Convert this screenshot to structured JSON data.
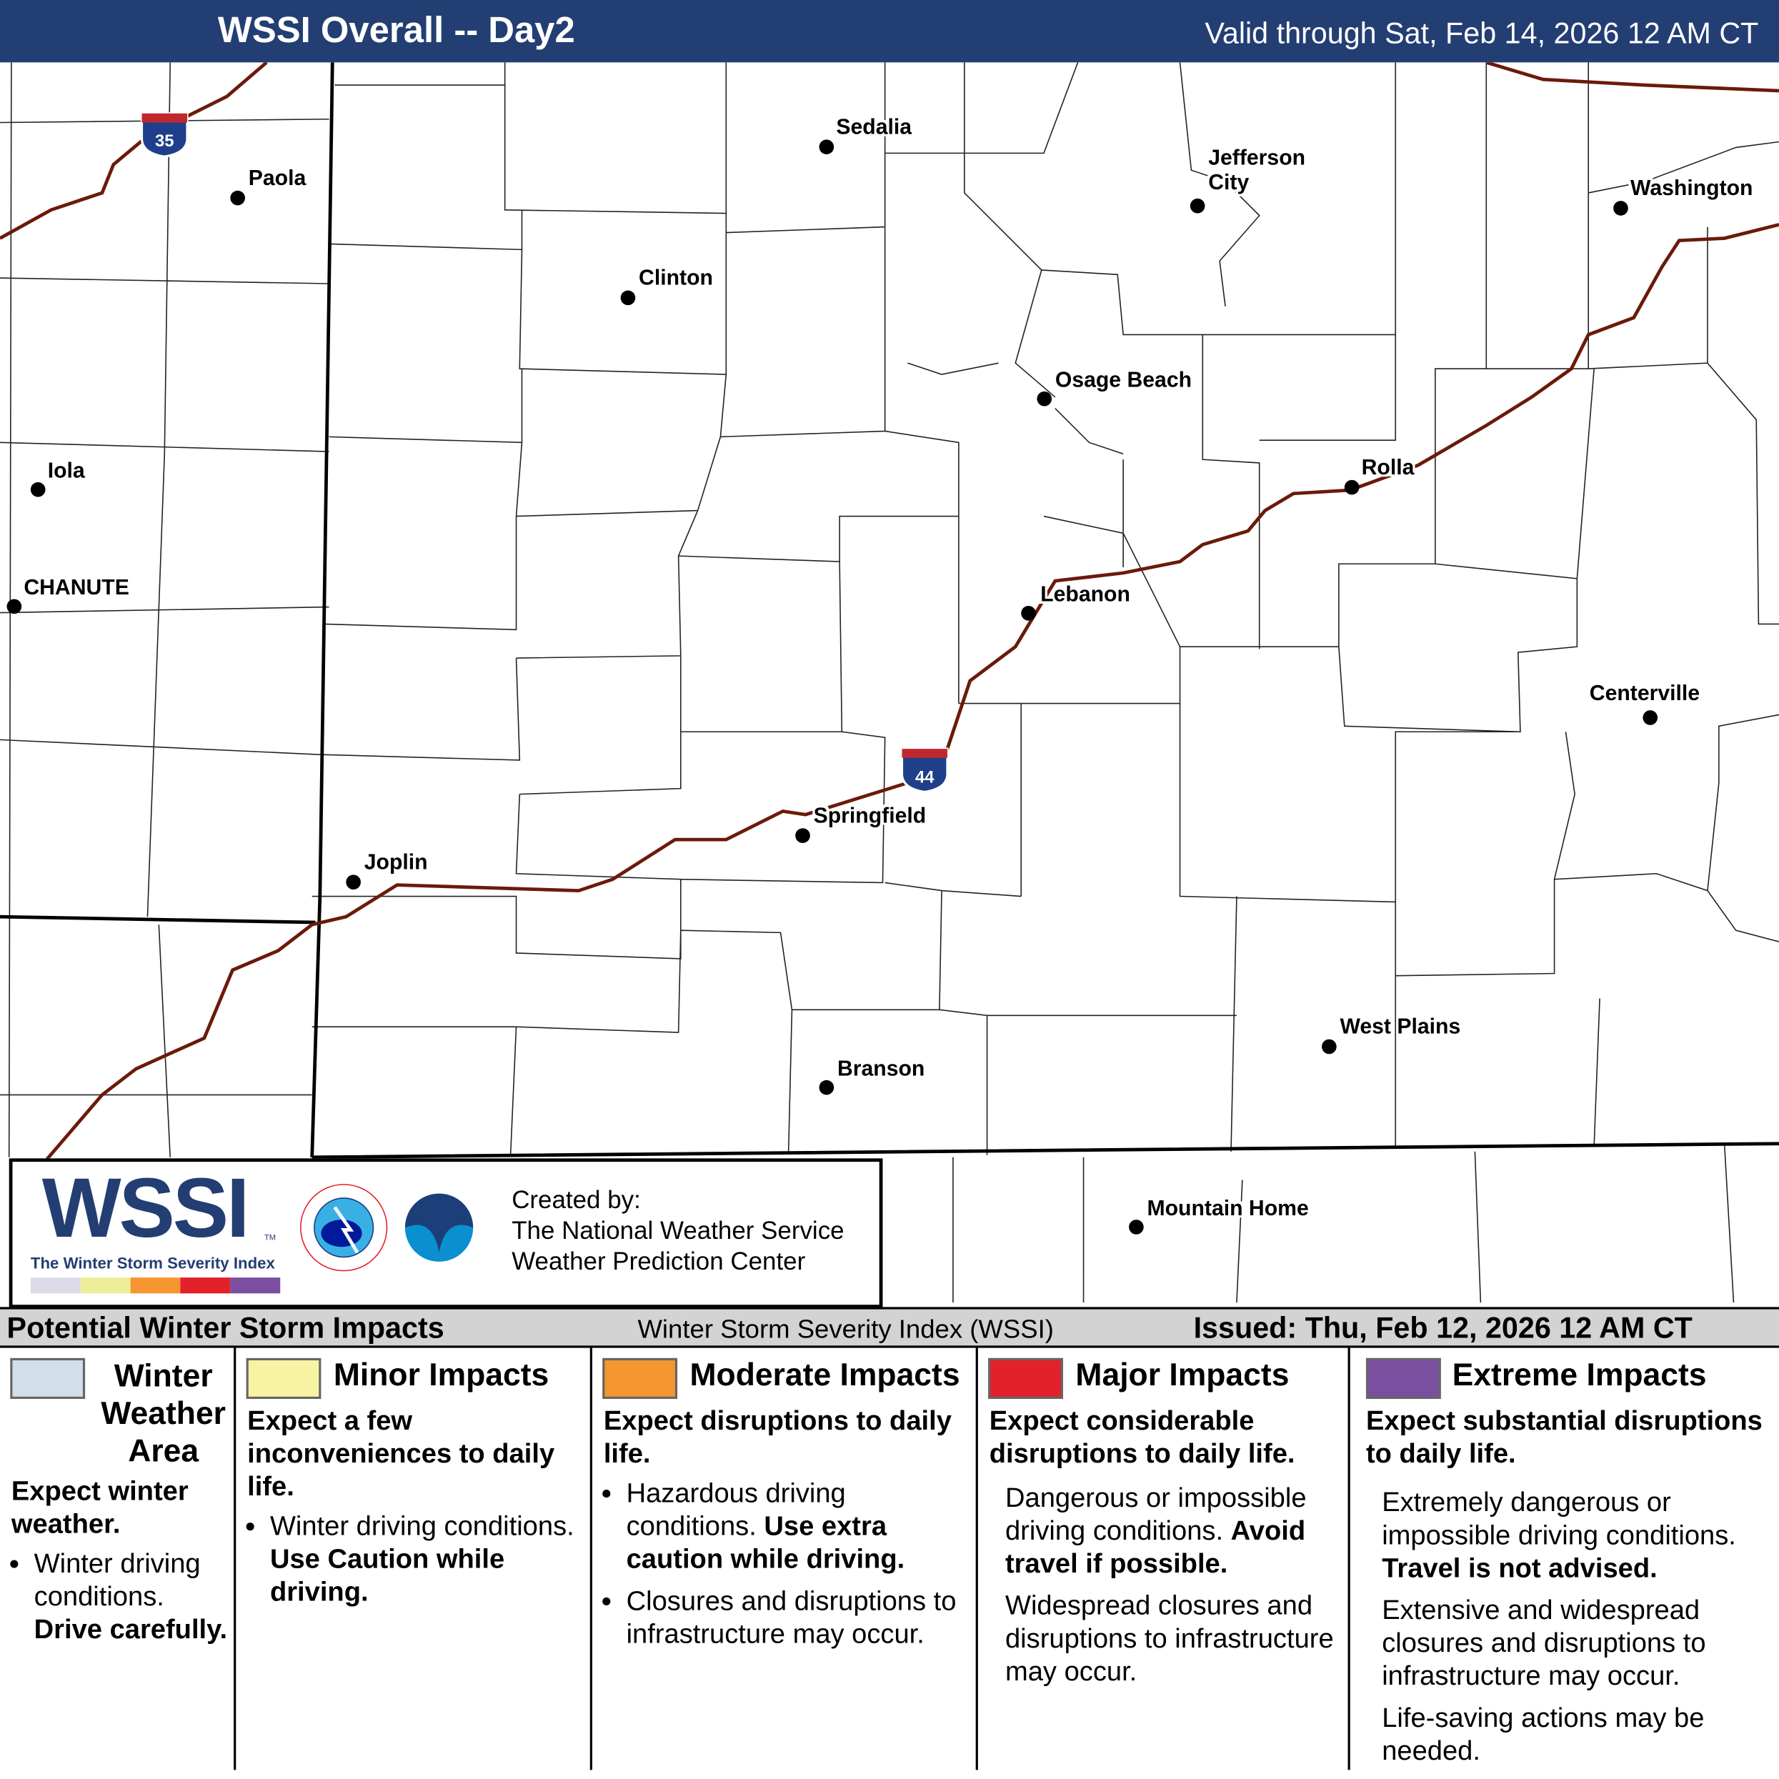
{
  "header": {
    "title": "WSSI Overall -- Day2",
    "valid": "Valid through Sat, Feb 14, 2026 12 AM CT",
    "bg_color": "#233e73"
  },
  "map": {
    "interstates": [
      {
        "shield": "35"
      },
      {
        "shield": "44"
      }
    ],
    "cities": [
      {
        "name": "Sedalia"
      },
      {
        "name": "Jefferson City"
      },
      {
        "name": "Washington"
      },
      {
        "name": "Paola"
      },
      {
        "name": "Clinton"
      },
      {
        "name": "Osage Beach"
      },
      {
        "name": "Iola"
      },
      {
        "name": "Rolla"
      },
      {
        "name": "CHANUTE"
      },
      {
        "name": "Lebanon"
      },
      {
        "name": "Centerville"
      },
      {
        "name": "Springfield"
      },
      {
        "name": "Joplin"
      },
      {
        "name": "West Plains"
      },
      {
        "name": "Branson"
      },
      {
        "name": "Mountain Home"
      }
    ],
    "interstate_color": "#6b1a0a"
  },
  "logo": {
    "wssi": "WSSI",
    "tm": "TM",
    "subtitle": "The Winter Storm Severity Index",
    "nws_icon": "nws-logo",
    "noaa_icon": "noaa-logo",
    "created_by": "Created by:",
    "org1": "The National Weather Service",
    "org2": "Weather Prediction Center"
  },
  "status_bar": {
    "left": "Potential Winter Storm Impacts",
    "center": "Winter Storm Severity Index (WSSI)",
    "right": "Issued: Thu, Feb 12, 2026 12 AM CT"
  },
  "legend": [
    {
      "title": "Winter Weather Area",
      "color": "#d3dfe8",
      "headline": "Expect winter weather.",
      "items": [
        {
          "text": "Winter driving conditions.",
          "bold": "Drive carefully."
        }
      ]
    },
    {
      "title": "Minor Impacts",
      "color": "#f7f3a3",
      "headline": "Expect a few inconveniences to daily life.",
      "items": [
        {
          "text": "Winter driving conditions.",
          "bold": "Use Caution while driving."
        }
      ]
    },
    {
      "title": "Moderate Impacts",
      "color": "#f59630",
      "headline": "Expect disruptions to daily life.",
      "items": [
        {
          "text": "Hazardous driving conditions.",
          "bold": "Use extra caution while driving."
        },
        {
          "text": "Closures and disruptions to infrastructure may occur.",
          "bold": ""
        }
      ]
    },
    {
      "title": "Major Impacts",
      "color": "#e3212b",
      "headline": "Expect considerable disruptions to daily life.",
      "items": [
        {
          "text": "Dangerous or impossible driving conditions.",
          "bold": "Avoid travel if possible."
        },
        {
          "text": "Widespread closures and disruptions to infrastructure may occur.",
          "bold": ""
        }
      ]
    },
    {
      "title": "Extreme Impacts",
      "color": "#7b4fa0",
      "headline": "Expect substantial disruptions to daily life.",
      "items": [
        {
          "text": "Extremely dangerous or impossible driving conditions.",
          "bold": "Travel is not advised."
        },
        {
          "text": "Extensive and widespread closures and disruptions to infrastructure may occur.",
          "bold": ""
        },
        {
          "text": "Life-saving actions may be needed.",
          "bold": ""
        }
      ]
    }
  ]
}
